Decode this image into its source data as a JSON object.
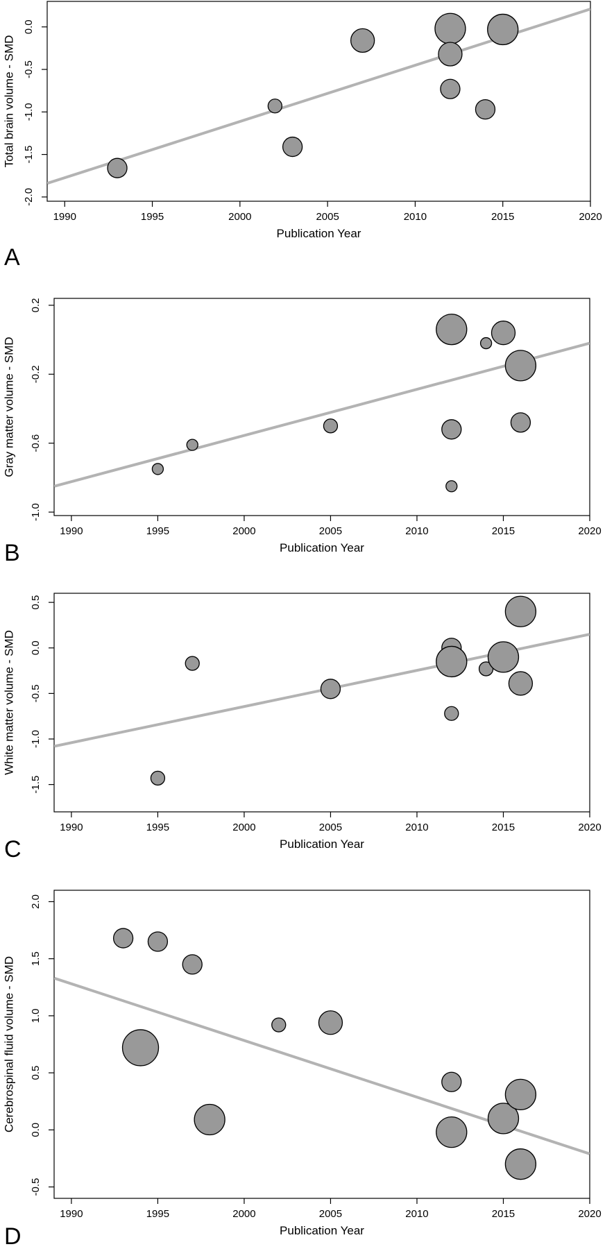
{
  "chart_data": [
    {
      "type": "scatter",
      "panel": "A",
      "xlabel": "Publication Year",
      "ylabel": "Total brain volume - SMD",
      "xlim": [
        1989,
        2020
      ],
      "ylim": [
        -2.05,
        0.3
      ],
      "xticks": [
        1990,
        1995,
        2000,
        2005,
        2010,
        2015,
        2020
      ],
      "yticks": [
        -2.0,
        -1.5,
        -1.0,
        -0.5,
        0.0
      ],
      "ytick_labels": [
        "-2.0",
        "-1.5",
        "-1.0",
        "-0.5",
        "0.0"
      ],
      "points": [
        {
          "x": 1993,
          "y": -1.66,
          "size": "medium"
        },
        {
          "x": 2002,
          "y": -0.93,
          "size": "small"
        },
        {
          "x": 2003,
          "y": -1.41,
          "size": "medium"
        },
        {
          "x": 2007,
          "y": -0.16,
          "size": "large"
        },
        {
          "x": 2012,
          "y": -0.02,
          "size": "xlarge"
        },
        {
          "x": 2012,
          "y": -0.32,
          "size": "large"
        },
        {
          "x": 2012,
          "y": -0.73,
          "size": "medium"
        },
        {
          "x": 2014,
          "y": -0.97,
          "size": "medium"
        },
        {
          "x": 2015,
          "y": -0.03,
          "size": "xlarge"
        }
      ],
      "regression": {
        "x": [
          1989,
          2020
        ],
        "y": [
          -1.84,
          0.21
        ]
      }
    },
    {
      "type": "scatter",
      "panel": "B",
      "xlabel": "Publication Year",
      "ylabel": "Gray matter volume - SMD",
      "xlim": [
        1989,
        2020
      ],
      "ylim": [
        -1.02,
        0.24
      ],
      "xticks": [
        1990,
        1995,
        2000,
        2005,
        2010,
        2015,
        2020
      ],
      "yticks": [
        -1.0,
        -0.6,
        -0.2,
        0.2
      ],
      "ytick_labels": [
        "-1.0",
        "-0.6",
        "-0.2",
        "0.2"
      ],
      "points": [
        {
          "x": 1995,
          "y": -0.75,
          "size": "xsmall"
        },
        {
          "x": 1997,
          "y": -0.61,
          "size": "xsmall"
        },
        {
          "x": 2005,
          "y": -0.5,
          "size": "small"
        },
        {
          "x": 2012,
          "y": 0.06,
          "size": "xlarge"
        },
        {
          "x": 2012,
          "y": -0.52,
          "size": "medium"
        },
        {
          "x": 2012,
          "y": -0.85,
          "size": "xsmall"
        },
        {
          "x": 2014,
          "y": -0.02,
          "size": "xsmall"
        },
        {
          "x": 2015,
          "y": 0.04,
          "size": "large"
        },
        {
          "x": 2016,
          "y": -0.15,
          "size": "xlarge"
        },
        {
          "x": 2016,
          "y": -0.48,
          "size": "medium"
        }
      ],
      "regression": {
        "x": [
          1989,
          2020
        ],
        "y": [
          -0.85,
          -0.02
        ]
      }
    },
    {
      "type": "scatter",
      "panel": "C",
      "xlabel": "Publication Year",
      "ylabel": "White matter volume - SMD",
      "xlim": [
        1989,
        2020
      ],
      "ylim": [
        -1.8,
        0.6
      ],
      "xticks": [
        1990,
        1995,
        2000,
        2005,
        2010,
        2015,
        2020
      ],
      "yticks": [
        -1.5,
        -1.0,
        -0.5,
        0.0,
        0.5
      ],
      "ytick_labels": [
        "-1.5",
        "-1.0",
        "-0.5",
        "0.0",
        "0.5"
      ],
      "points": [
        {
          "x": 1995,
          "y": -1.43,
          "size": "small"
        },
        {
          "x": 1997,
          "y": -0.17,
          "size": "small"
        },
        {
          "x": 2005,
          "y": -0.45,
          "size": "medium"
        },
        {
          "x": 2012,
          "y": 0.0,
          "size": "medium"
        },
        {
          "x": 2012,
          "y": -0.15,
          "size": "xlarge"
        },
        {
          "x": 2012,
          "y": -0.72,
          "size": "small"
        },
        {
          "x": 2014,
          "y": -0.23,
          "size": "small"
        },
        {
          "x": 2015,
          "y": -0.1,
          "size": "xlarge"
        },
        {
          "x": 2016,
          "y": 0.4,
          "size": "xlarge"
        },
        {
          "x": 2016,
          "y": -0.39,
          "size": "large"
        }
      ],
      "regression": {
        "x": [
          1989,
          2020
        ],
        "y": [
          -1.08,
          0.15
        ]
      }
    },
    {
      "type": "scatter",
      "panel": "D",
      "xlabel": "Publication Year",
      "ylabel": "Cerebrospinal fluid volume - SMD",
      "xlim": [
        1989,
        2020
      ],
      "ylim": [
        -0.6,
        2.1
      ],
      "xticks": [
        1990,
        1995,
        2000,
        2005,
        2010,
        2015,
        2020
      ],
      "yticks": [
        -0.5,
        0.0,
        0.5,
        1.0,
        1.5,
        2.0
      ],
      "ytick_labels": [
        "-0.5",
        "0.0",
        "0.5",
        "1.0",
        "1.5",
        "2.0"
      ],
      "points": [
        {
          "x": 1993,
          "y": 1.68,
          "size": "medium"
        },
        {
          "x": 1994,
          "y": 0.72,
          "size": "xxlarge"
        },
        {
          "x": 1995,
          "y": 1.65,
          "size": "medium"
        },
        {
          "x": 1997,
          "y": 1.45,
          "size": "medium"
        },
        {
          "x": 1998,
          "y": 0.09,
          "size": "xlarge"
        },
        {
          "x": 2002,
          "y": 0.92,
          "size": "small"
        },
        {
          "x": 2005,
          "y": 0.94,
          "size": "large"
        },
        {
          "x": 2012,
          "y": 0.42,
          "size": "medium"
        },
        {
          "x": 2012,
          "y": -0.02,
          "size": "xlarge"
        },
        {
          "x": 2015,
          "y": 0.1,
          "size": "xlarge"
        },
        {
          "x": 2016,
          "y": 0.31,
          "size": "xlarge"
        },
        {
          "x": 2016,
          "y": -0.3,
          "size": "xlarge"
        }
      ],
      "regression": {
        "x": [
          1989,
          2020
        ],
        "y": [
          1.33,
          -0.21
        ]
      }
    }
  ],
  "style": {
    "point_fill": "#999999",
    "point_stroke": "#000000",
    "regression_color": "#b3b3b3",
    "axis_color": "#000000"
  }
}
